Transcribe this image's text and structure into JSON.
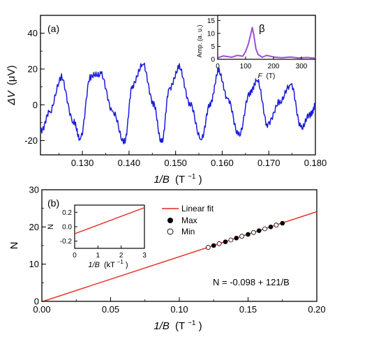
{
  "chart_data": [
    {
      "panel": "(a)",
      "type": "line",
      "xlabel_var": "1/B",
      "xlabel_unit": "(T",
      "xlabel_sup": "−1",
      "xlabel_close": ")",
      "ylabel_var": "ΔV",
      "ylabel_unit": "(μV)",
      "xlim": [
        0.121,
        0.18
      ],
      "ylim": [
        -28,
        50
      ],
      "xticks": [
        "0.130",
        "0.140",
        "0.150",
        "0.160",
        "0.170",
        "0.180"
      ],
      "yticks": [
        "40",
        "20",
        "0",
        "-20"
      ],
      "color": "#1a1adc",
      "series": [
        {
          "x": [
            0.121,
            0.123,
            0.1255,
            0.128,
            0.1295,
            0.1318,
            0.134,
            0.1365,
            0.139,
            0.1408,
            0.143,
            0.1452,
            0.147,
            0.1487,
            0.1508,
            0.153,
            0.1555,
            0.1575,
            0.1592,
            0.1612,
            0.1636,
            0.166,
            0.1675,
            0.1697,
            0.1722,
            0.1748,
            0.177,
            0.179,
            0.18
          ],
          "y": [
            -14,
            -5,
            16,
            -10,
            -18,
            15,
            18,
            -5,
            -20,
            10,
            24,
            0,
            -20,
            8,
            22,
            0,
            -18,
            0,
            20,
            2,
            -16,
            6,
            15,
            -12,
            2,
            10,
            -12,
            -6,
            1
          ]
        }
      ],
      "inset": {
        "type": "line",
        "xlabel_var": "F",
        "xlabel_unit": "(T)",
        "ylabel": "Amp. (a. u.)",
        "xlim": [
          0,
          350
        ],
        "ylim": [
          0,
          17
        ],
        "xticks": [
          "0",
          "100",
          "200",
          "300"
        ],
        "yticks": [
          "15",
          "10",
          "5",
          "0"
        ],
        "peak_label": "β",
        "color": "#9b4fd6",
        "x": [
          0,
          20,
          50,
          70,
          90,
          100,
          110,
          118,
          124,
          130,
          137,
          145,
          160,
          175,
          200,
          230,
          260,
          290,
          320,
          350
        ],
        "y": [
          0.5,
          1.3,
          0.8,
          1.5,
          1.2,
          3.0,
          6.0,
          9.5,
          12.3,
          9.0,
          4.0,
          1.8,
          0.8,
          1.5,
          0.9,
          0.6,
          0.9,
          0.5,
          0.7,
          0.4
        ]
      }
    },
    {
      "panel": "(b)",
      "type": "scatter",
      "xlabel_var": "1/B",
      "xlabel_unit": "(T",
      "xlabel_sup": "−1",
      "xlabel_close": ")",
      "ylabel": "N",
      "xlim": [
        0,
        0.2
      ],
      "ylim": [
        0,
        30
      ],
      "xticks": [
        "0.00",
        "0.05",
        "0.10",
        "0.15",
        "0.20"
      ],
      "yticks": [
        "30",
        "20",
        "10",
        "0"
      ],
      "fit": {
        "intercept": -0.098,
        "slope": 121,
        "color": "#e8261f"
      },
      "series": [
        {
          "name": "Max",
          "x": [
            0.125,
            0.1335,
            0.1415,
            0.15,
            0.158,
            0.1665,
            0.175
          ],
          "y": [
            15,
            16,
            17,
            18,
            19,
            20,
            21
          ]
        },
        {
          "name": "Min",
          "x": [
            0.121,
            0.129,
            0.1375,
            0.1455,
            0.154,
            0.1622,
            0.1705
          ],
          "y": [
            14.5,
            15.5,
            16.5,
            17.5,
            18.5,
            19.5,
            20.5
          ]
        }
      ],
      "legend": [
        {
          "name": "Linear fit"
        },
        {
          "name": "Max"
        },
        {
          "name": "Min"
        }
      ],
      "annotation": "N = -0.098 + 121/B",
      "inset": {
        "type": "line",
        "xlabel_var": "1/B",
        "xlabel_unit": "(kT",
        "xlabel_sup": "−1",
        "xlabel_close": ")",
        "ylabel": "N",
        "xlim": [
          0,
          3
        ],
        "ylim": [
          -0.3,
          0.3
        ],
        "xticks": [
          "0",
          "1",
          "2",
          "3"
        ],
        "yticks": [
          "0.2",
          "0.0",
          "-0.2"
        ]
      }
    }
  ]
}
